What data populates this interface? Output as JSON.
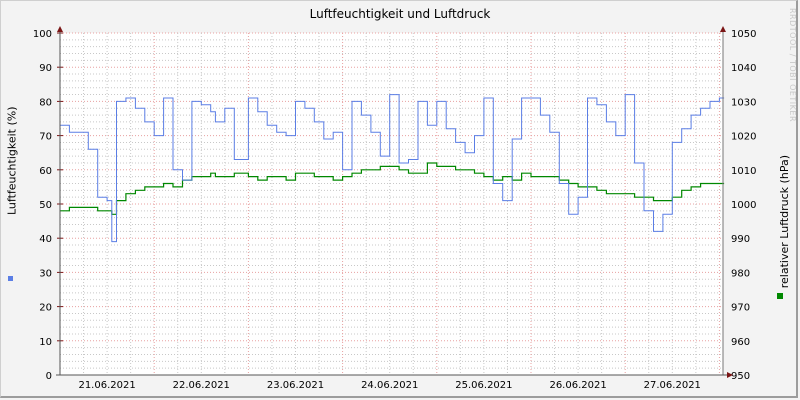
{
  "title": "Luftfeuchtigkeit und Luftdruck",
  "watermark": "RRDTOOL / TOBI OETIKER",
  "left_axis_label": "Luftfeuchtigkeit (%)",
  "right_axis_label": "relativer Luftdruck (hPa)",
  "colors": {
    "humidity": "#5b7ee5",
    "pressure": "#008800",
    "axis": "#7a1515",
    "major_grid": "#e8a0a0",
    "minor_grid": "#c8c8c8"
  },
  "chart_data": {
    "type": "line",
    "title": "Luftfeuchtigkeit und Luftdruck",
    "xlabel": "",
    "ylabel": "Luftfeuchtigkeit (%)",
    "y2label": "relativer Luftdruck (hPa)",
    "ylim": [
      0,
      100
    ],
    "y2lim": [
      950,
      1050
    ],
    "yticks": [
      0,
      10,
      20,
      30,
      40,
      50,
      60,
      70,
      80,
      90,
      100
    ],
    "y2ticks": [
      950,
      960,
      970,
      980,
      990,
      1000,
      1010,
      1020,
      1030,
      1040,
      1050
    ],
    "xticks": [
      "21.06.2021",
      "22.06.2021",
      "23.06.2021",
      "24.06.2021",
      "25.06.2021",
      "26.06.2021",
      "27.06.2021"
    ],
    "grid": true,
    "x_days": [
      20.5,
      20.6,
      20.7,
      20.8,
      20.9,
      21.0,
      21.05,
      21.1,
      21.2,
      21.3,
      21.4,
      21.5,
      21.6,
      21.7,
      21.8,
      21.9,
      22.0,
      22.1,
      22.15,
      22.25,
      22.35,
      22.5,
      22.6,
      22.7,
      22.8,
      22.9,
      23.0,
      23.1,
      23.2,
      23.3,
      23.4,
      23.5,
      23.6,
      23.7,
      23.8,
      23.9,
      24.0,
      24.1,
      24.2,
      24.3,
      24.4,
      24.5,
      24.6,
      24.7,
      24.8,
      24.9,
      25.0,
      25.1,
      25.2,
      25.3,
      25.4,
      25.5,
      25.6,
      25.7,
      25.8,
      25.9,
      26.0,
      26.1,
      26.2,
      26.3,
      26.4,
      26.5,
      26.6,
      26.7,
      26.8,
      26.9,
      27.0,
      27.1,
      27.2,
      27.3,
      27.4,
      27.5,
      27.55
    ],
    "series": [
      {
        "name": "Luftfeuchtigkeit (%)",
        "axis": "left",
        "color": "#5b7ee5",
        "values": [
          73,
          71,
          71,
          66,
          52,
          51,
          39,
          80,
          81,
          78,
          74,
          70,
          81,
          60,
          57,
          80,
          79,
          77,
          74,
          78,
          63,
          81,
          77,
          73,
          71,
          70,
          80,
          78,
          74,
          69,
          71,
          60,
          80,
          76,
          71,
          64,
          82,
          62,
          63,
          80,
          73,
          80,
          72,
          68,
          65,
          70,
          81,
          56,
          51,
          69,
          81,
          81,
          76,
          71,
          56,
          47,
          52,
          81,
          79,
          74,
          70,
          82,
          62,
          48,
          42,
          47,
          68,
          72,
          76,
          78,
          80,
          81,
          81
        ]
      },
      {
        "name": "relativer Luftdruck (hPa)",
        "axis": "right",
        "color": "#008800",
        "values": [
          998,
          999,
          999,
          999,
          998,
          998,
          997,
          1001,
          1003,
          1004,
          1005,
          1005,
          1006,
          1005,
          1007,
          1008,
          1008,
          1009,
          1008,
          1008,
          1009,
          1008,
          1007,
          1008,
          1008,
          1007,
          1009,
          1009,
          1008,
          1008,
          1007,
          1008,
          1009,
          1010,
          1010,
          1011,
          1011,
          1010,
          1009,
          1009,
          1012,
          1011,
          1011,
          1010,
          1010,
          1009,
          1008,
          1007,
          1008,
          1007,
          1009,
          1008,
          1008,
          1008,
          1007,
          1006,
          1005,
          1005,
          1004,
          1003,
          1003,
          1003,
          1002,
          1002,
          1001,
          1001,
          1002,
          1004,
          1005,
          1006,
          1006,
          1006,
          1006
        ]
      }
    ]
  }
}
